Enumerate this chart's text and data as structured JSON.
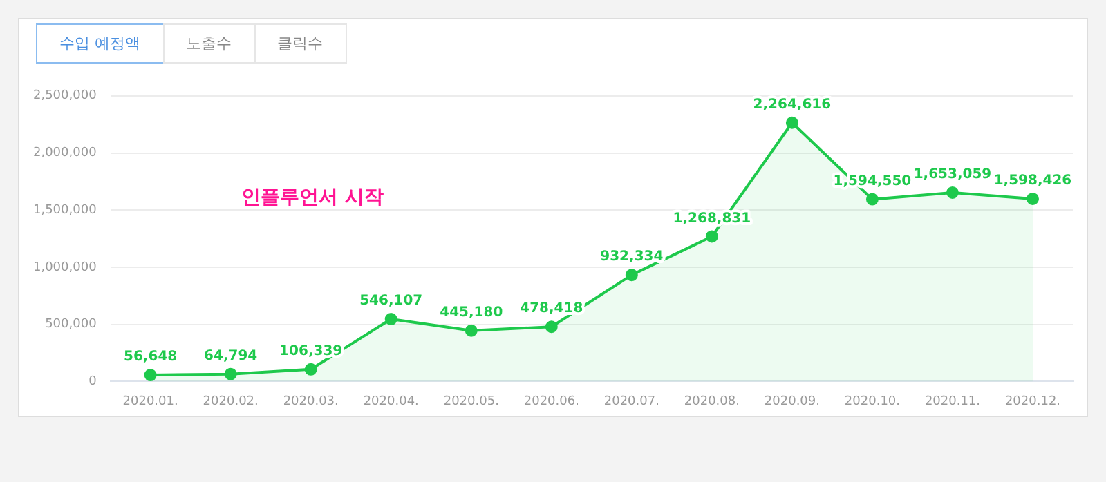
{
  "chart_data": {
    "type": "area",
    "categories": [
      "2020.01.",
      "2020.02.",
      "2020.03.",
      "2020.04.",
      "2020.05.",
      "2020.06.",
      "2020.07.",
      "2020.08.",
      "2020.09.",
      "2020.10.",
      "2020.11.",
      "2020.12."
    ],
    "series": [
      {
        "color": "#1ec94c",
        "values": [
          56648,
          64794,
          106339,
          546107,
          445180,
          478418,
          932334,
          1268831,
          2264616,
          1594550,
          1653059,
          1598426
        ]
      }
    ],
    "ylim": [
      0,
      2500000
    ],
    "yticks": [
      {
        "value": 0,
        "label": "0"
      },
      {
        "value": 500000,
        "label": "500,000"
      },
      {
        "value": 1000000,
        "label": "1,000,000"
      },
      {
        "value": 1500000,
        "label": "1,500,000"
      },
      {
        "value": 2000000,
        "label": "2,000,000"
      },
      {
        "value": 2500000,
        "label": "2,500,000"
      }
    ],
    "value_labels": [
      "56,648",
      "64,794",
      "106,339",
      "546,107",
      "445,180",
      "478,418",
      "932,334",
      "1,268,831",
      "2,264,616",
      "1,594,550",
      "1,653,059",
      "1,598,426"
    ],
    "grid": "y",
    "legend": false,
    "marker": "circle",
    "line_style": "solid",
    "annotations": [
      "수입 예정액",
      "노출수",
      "클릭수",
      "인플루언서 시작"
    ]
  }
}
